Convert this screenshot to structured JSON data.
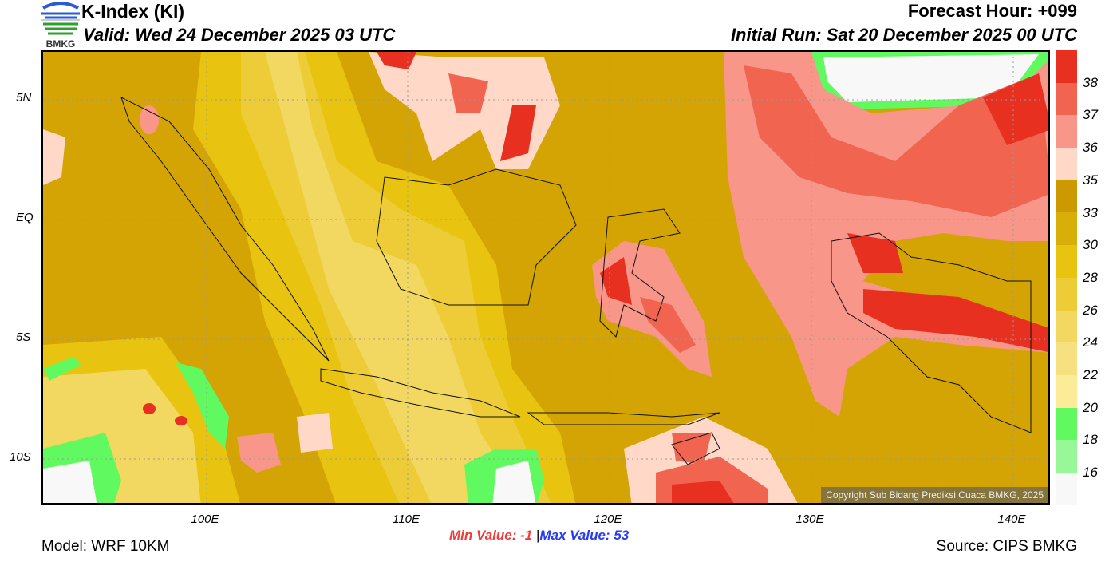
{
  "header": {
    "title": "K-Index (KI)",
    "valid": "Valid: Wed 24 December 2025 03 UTC",
    "forecast_hour": "Forecast Hour: +099",
    "initial_run": "Initial Run: Sat 20 December 2025 00 UTC",
    "logo_text": "BMKG"
  },
  "map": {
    "lat_labels": [
      "5N",
      "EQ",
      "5S",
      "10S"
    ],
    "lon_labels": [
      "100E",
      "110E",
      "120E",
      "130E",
      "140E"
    ],
    "copyright": "Copyright Sub Bidang Prediksi Cuaca BMKG, 2025"
  },
  "colorbar": {
    "labels": [
      "38",
      "37",
      "36",
      "35",
      "33",
      "30",
      "28",
      "26",
      "24",
      "22",
      "20",
      "18",
      "16"
    ],
    "colors": [
      "#e83020",
      "#f06450",
      "#f8968a",
      "#ffd8c8",
      "#cc9a00",
      "#d8ae08",
      "#e8c410",
      "#edcc38",
      "#f2d860",
      "#f6e080",
      "#fcec98",
      "#60fa60",
      "#98f898",
      "#f8f8f8"
    ]
  },
  "footer": {
    "min_label": "Min Value:",
    "min_value": "-1",
    "separator": "|",
    "max_label": "Max Value:",
    "max_value": "53",
    "model": "Model: WRF 10KM",
    "source": "Source: CIPS BMKG"
  }
}
